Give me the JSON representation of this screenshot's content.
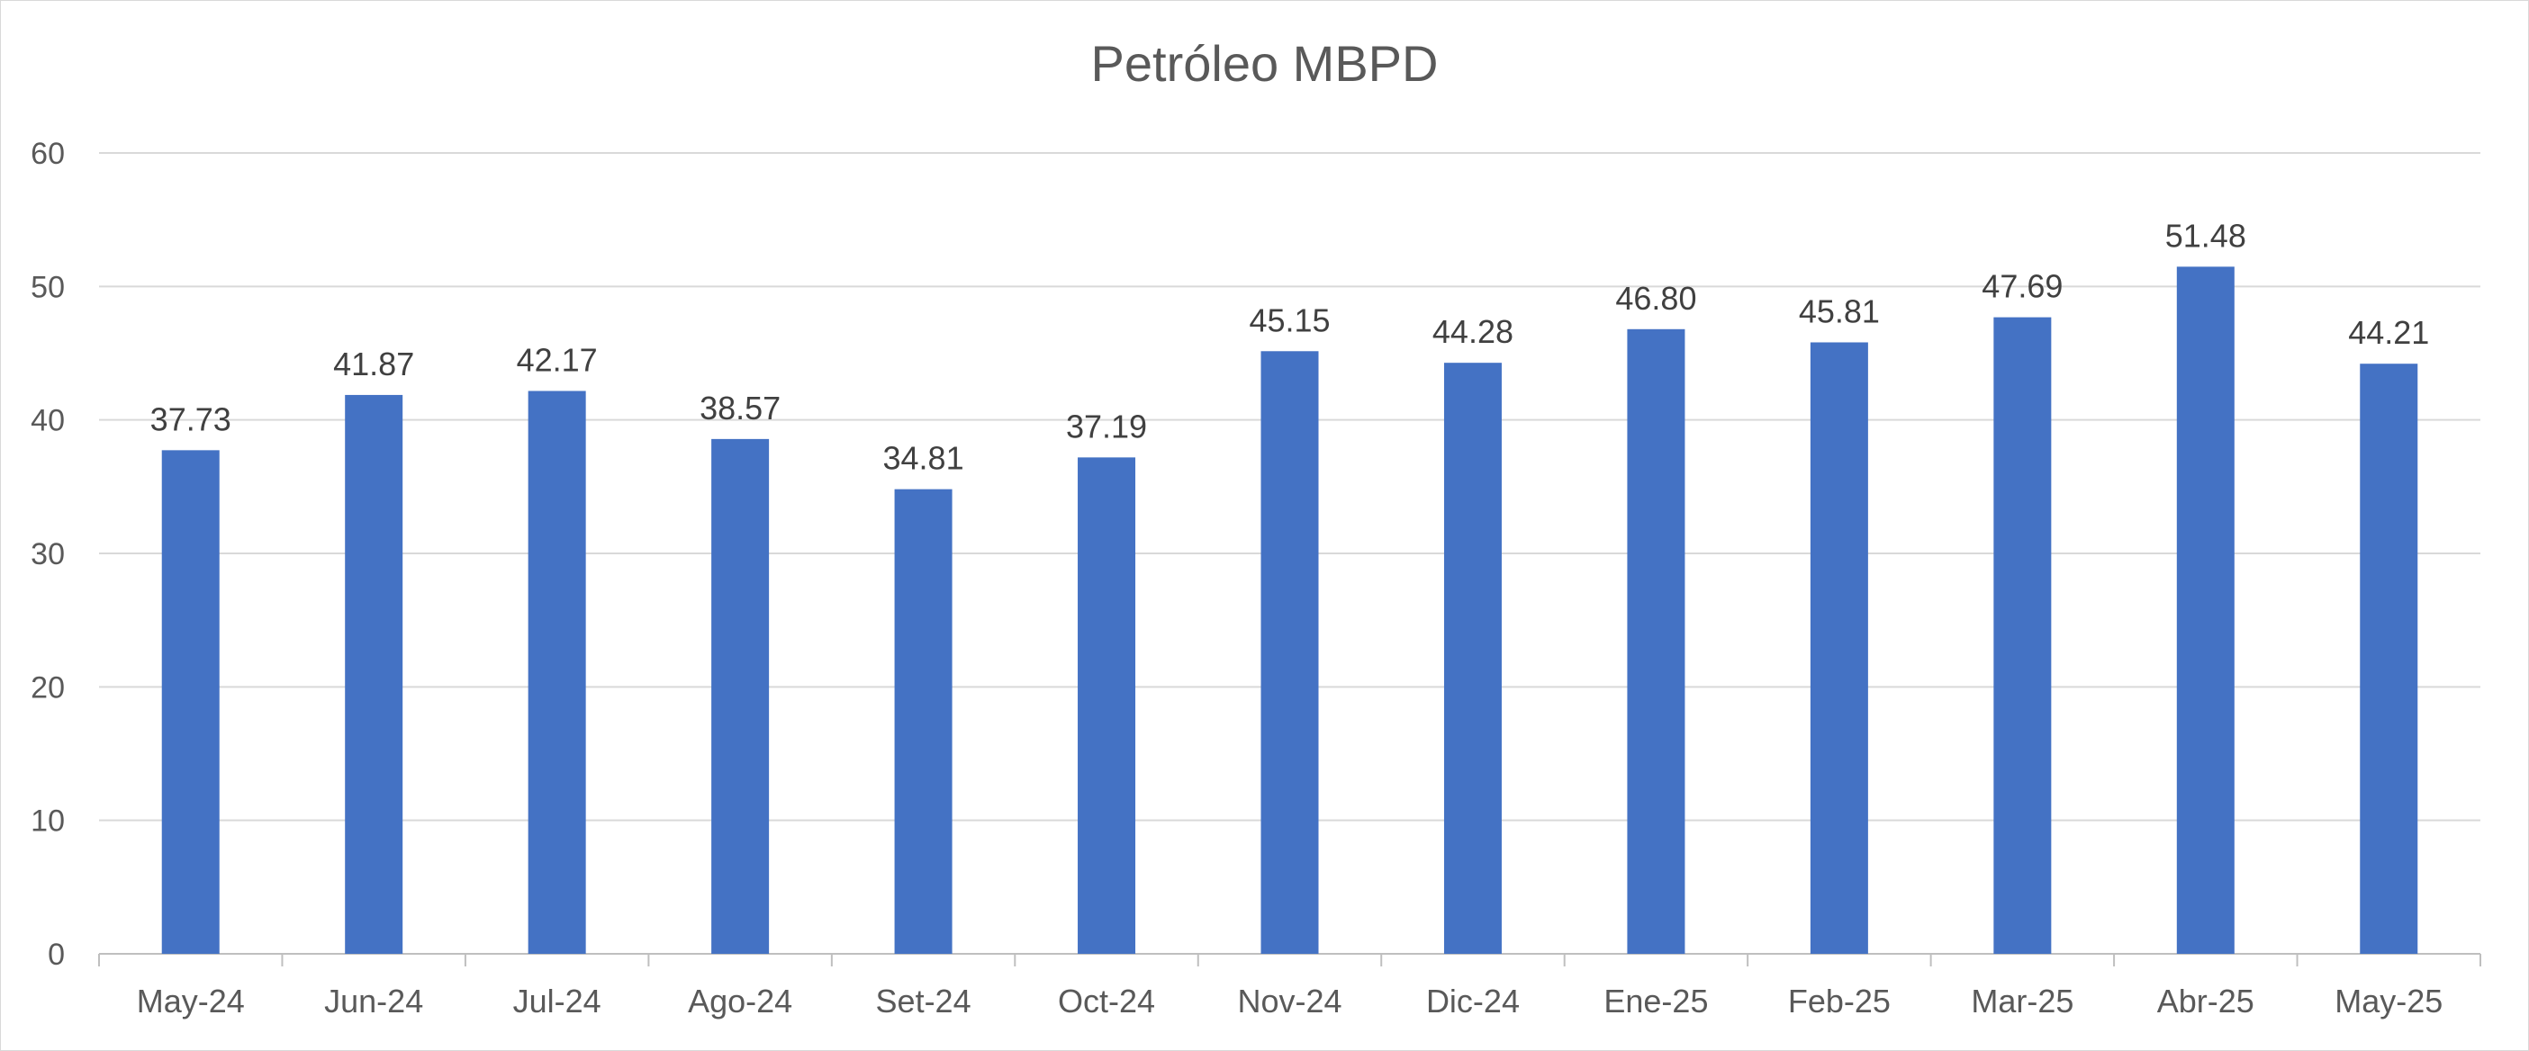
{
  "chart_data": {
    "type": "bar",
    "title": "Petróleo MBPD",
    "xlabel": "",
    "ylabel": "",
    "categories": [
      "May-24",
      "Jun-24",
      "Jul-24",
      "Ago-24",
      "Set-24",
      "Oct-24",
      "Nov-24",
      "Dic-24",
      "Ene-25",
      "Feb-25",
      "Mar-25",
      "Abr-25",
      "May-25"
    ],
    "values": [
      37.73,
      41.87,
      42.17,
      38.57,
      34.81,
      37.19,
      45.15,
      44.28,
      46.8,
      45.81,
      47.69,
      51.48,
      44.21
    ],
    "data_labels": [
      "37.73",
      "41.87",
      "42.17",
      "38.57",
      "34.81",
      "37.19",
      "45.15",
      "44.28",
      "46.80",
      "45.81",
      "47.69",
      "51.48",
      "44.21"
    ],
    "ylim": [
      0,
      60
    ],
    "yticks": [
      "0",
      "10",
      "20",
      "30",
      "40",
      "50",
      "60"
    ],
    "grid": true,
    "legend": "none",
    "colors": {
      "bar": "#4472c4",
      "grid": "#d9d9d9",
      "axis": "#bfbfbf",
      "text": "#595959",
      "data_label": "#404040",
      "title": "#595959"
    }
  }
}
